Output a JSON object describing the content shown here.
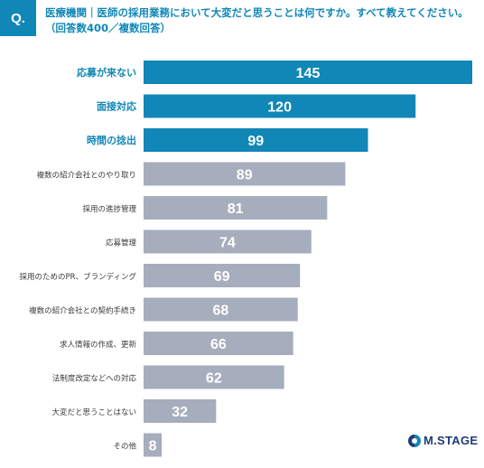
{
  "question": {
    "badge": "Q.",
    "line1": "医療機関｜医師の採用業務において大変だと思うことは何ですか。すべて教えてください。",
    "line2": "（回答数400／複数回答）"
  },
  "colors": {
    "accent": "#1187b7",
    "muted": "#a6adbc",
    "muted_label": "#3a3a3a"
  },
  "logo": {
    "text": "M.STAGE"
  },
  "chart_data": {
    "type": "bar",
    "orientation": "horizontal",
    "categories": [
      "応募が来ない",
      "面接対応",
      "時間の捻出",
      "複数の紹介会社とのやり取り",
      "採用の進捗管理",
      "応募管理",
      "採用のためのPR、ブランディング",
      "複数の紹介会社との契約手続き",
      "求人情報の作成、更新",
      "法制度改定などへの対応",
      "大変だと思うことはない",
      "その他"
    ],
    "values": [
      145,
      120,
      99,
      89,
      81,
      74,
      69,
      68,
      66,
      62,
      32,
      8
    ],
    "highlighted": [
      true,
      true,
      true,
      false,
      false,
      false,
      false,
      false,
      false,
      false,
      false,
      false
    ],
    "xlim": [
      0,
      145
    ],
    "grid": false,
    "data_labels": true
  }
}
